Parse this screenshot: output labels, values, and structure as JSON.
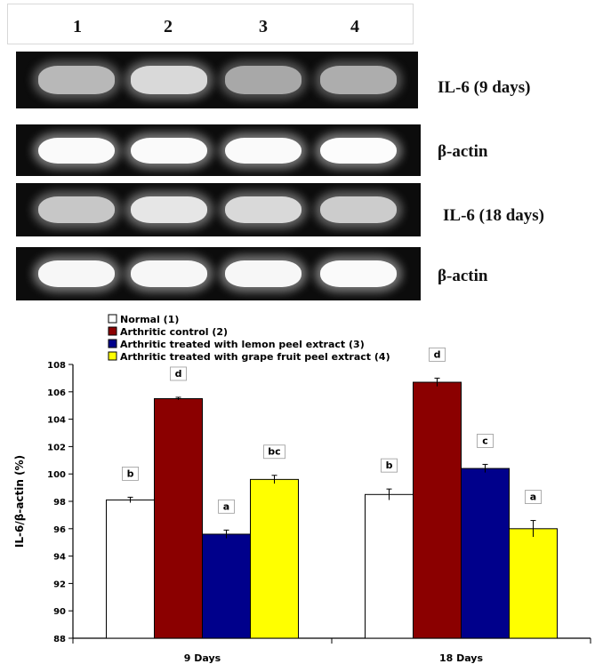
{
  "gel": {
    "lanes": [
      "1",
      "2",
      "3",
      "4"
    ],
    "rows": [
      {
        "label": "IL-6 (9 days)",
        "intensity": [
          0.72,
          0.85,
          0.66,
          0.68
        ]
      },
      {
        "label": "β-actin",
        "intensity": [
          0.98,
          0.98,
          0.98,
          0.99
        ]
      },
      {
        "label": "IL-6 (18 days)",
        "intensity": [
          0.78,
          0.9,
          0.85,
          0.8
        ]
      },
      {
        "label": "β-actin",
        "intensity": [
          0.97,
          0.97,
          0.97,
          0.98
        ]
      }
    ]
  },
  "chart_data": {
    "type": "bar",
    "ylabel": "IL-6/β-actin (%)",
    "ylim": [
      88,
      108
    ],
    "yticks": [
      "88",
      "90",
      "92",
      "94",
      "96",
      "98",
      "100",
      "102",
      "104",
      "106",
      "108"
    ],
    "categories": [
      "9 Days",
      "18 Days"
    ],
    "series": [
      {
        "name": "Normal (1)",
        "color": "#ffffff",
        "values": [
          98.1,
          98.5
        ],
        "errors": [
          0.2,
          0.4
        ],
        "labels": [
          "b",
          "b"
        ]
      },
      {
        "name": "Arthritic control (2)",
        "color": "#8b0000",
        "values": [
          105.5,
          106.7
        ],
        "errors": [
          0.1,
          0.3
        ],
        "labels": [
          "d",
          "d"
        ]
      },
      {
        "name": "Arthritic treated with lemon peel extract (3)",
        "color": "#00008b",
        "values": [
          95.6,
          100.4
        ],
        "errors": [
          0.3,
          0.3
        ],
        "labels": [
          "a",
          "c"
        ]
      },
      {
        "name": "Arthritic treated with grape fruit peel extract (4)",
        "color": "#ffff00",
        "values": [
          99.6,
          96.0
        ],
        "errors": [
          0.3,
          0.6
        ],
        "labels": [
          "bc",
          "a"
        ]
      }
    ],
    "legend_position": "top-left",
    "grid": false
  }
}
